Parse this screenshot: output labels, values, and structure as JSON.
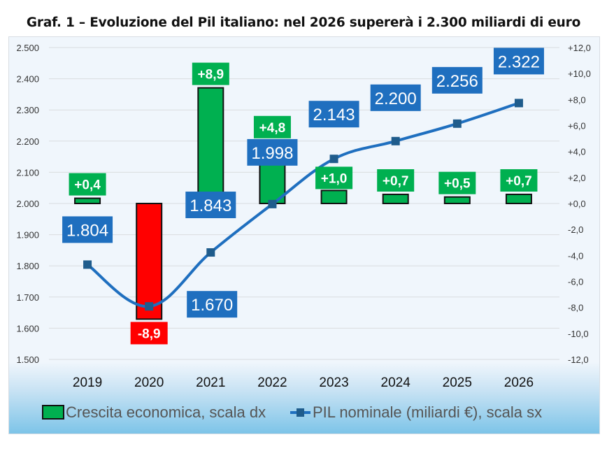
{
  "chart_data": {
    "type": "bar+line",
    "title": "Graf. 1 – Evoluzione del Pil italiano: nel 2026 supererà i 2.300 miliardi di euro",
    "categories": [
      "2019",
      "2020",
      "2021",
      "2022",
      "2023",
      "2024",
      "2025",
      "2026"
    ],
    "series": [
      {
        "name": "Crescita economica, scala dx",
        "type": "bar",
        "axis": "right",
        "values": [
          0.4,
          -8.9,
          8.9,
          4.8,
          1.0,
          0.7,
          0.5,
          0.7
        ],
        "labels": [
          "+0,4",
          "-8,9",
          "+8,9",
          "+4,8",
          "+1,0",
          "+0,7",
          "+0,5",
          "+0,7"
        ],
        "color_positive": "#00b050",
        "color_negative": "#ff0000"
      },
      {
        "name": "PIL nominale (miliardi €), scala sx",
        "type": "line",
        "axis": "left",
        "values": [
          1804,
          1670,
          1843,
          1998,
          2143,
          2200,
          2256,
          2322
        ],
        "labels": [
          "1.804",
          "1.670",
          "1.843",
          "1.998",
          "2.143",
          "2.200",
          "2.256",
          "2.322"
        ],
        "color": "#1f6fbf",
        "label_color": "#1f6fbf",
        "marker_color": "#1f5c8c"
      }
    ],
    "left_axis": {
      "range": [
        1500,
        2500
      ],
      "ticks": [
        1500,
        1600,
        1700,
        1800,
        1900,
        2000,
        2100,
        2200,
        2300,
        2400,
        2500
      ],
      "tick_labels": [
        "1.500",
        "1.600",
        "1.700",
        "1.800",
        "1.900",
        "2.000",
        "2.100",
        "2.200",
        "2.300",
        "2.400",
        "2.500"
      ]
    },
    "right_axis": {
      "range": [
        -12,
        12
      ],
      "ticks": [
        12,
        10,
        8,
        6,
        4,
        2,
        0,
        -2,
        -4,
        -6,
        -8,
        -10,
        -12
      ],
      "tick_labels": [
        "+12,0",
        "+10,0",
        "+8,0",
        "+6,0",
        "+4,0",
        "+2,0",
        "+0,0",
        "-2,0",
        "-4,0",
        "-6,0",
        "-8,0",
        "-10,0",
        "-12,0"
      ]
    },
    "grid": true,
    "legend_position": "bottom",
    "legend": [
      "Crescita economica, scala dx",
      "PIL nominale (miliardi €), scala sx"
    ]
  }
}
